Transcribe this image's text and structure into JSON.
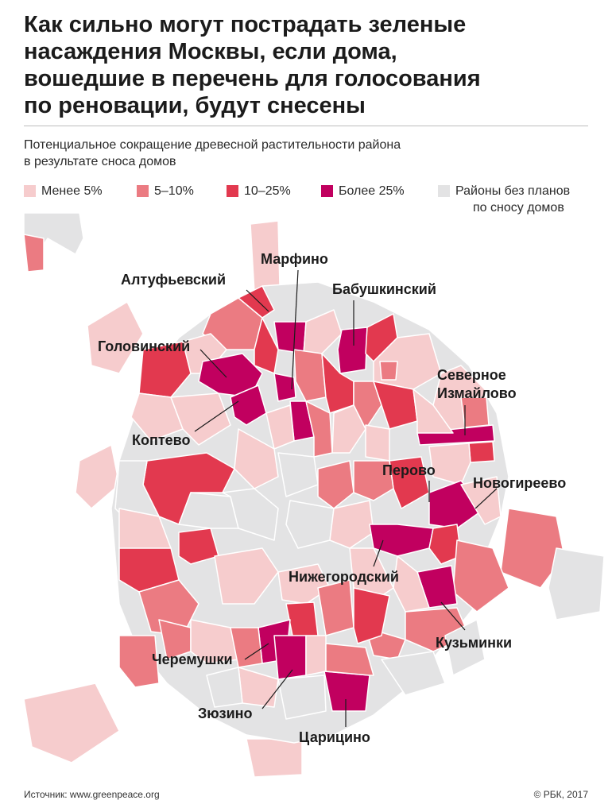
{
  "title_lines": [
    "Как сильно могут пострадать зеленые",
    "насаждения Москвы, если дома,",
    "вошедшие в перечень для голосования",
    "по реновации, будут снесены"
  ],
  "subtitle_lines": [
    "Потенциальное сокращение древесной растительности района",
    "в результате сноса домов"
  ],
  "legend": [
    {
      "label": "Менее 5%",
      "color": "#f6cccd"
    },
    {
      "label": "5–10%",
      "color": "#eb7b82"
    },
    {
      "label": "10–25%",
      "color": "#e2394f"
    },
    {
      "label": "Более 25%",
      "color": "#c1005f"
    },
    {
      "label_lines": [
        "Районы без планов",
        "по сносу домов"
      ],
      "color": "#e3e3e4"
    }
  ],
  "callouts": {
    "marfino": "Марфино",
    "altufyevsky": "Алтуфьевский",
    "babushkinsky": "Бабушкинский",
    "golovinsky": "Головинский",
    "severnoe_izmaylovo": [
      "Северное",
      "Измайлово"
    ],
    "koptevo": "Коптево",
    "perovo": "Перово",
    "novogireevo": "Новогиреево",
    "nizhegorodsky": "Нижегородский",
    "kuzminki": "Кузьминки",
    "cheryomushki": "Черемушки",
    "zyuzino": "Зюзино",
    "tsaritsyno": "Царицино"
  },
  "footer": {
    "source": "Источник: www.greenpeace.org",
    "copyright": "© РБК, 2017"
  },
  "colors": {
    "less5": "#f6cccd",
    "from5to10": "#eb7b82",
    "from10to25": "#e2394f",
    "over25": "#c1005f",
    "no_plans": "#e3e3e4",
    "border": "#ffffff"
  }
}
